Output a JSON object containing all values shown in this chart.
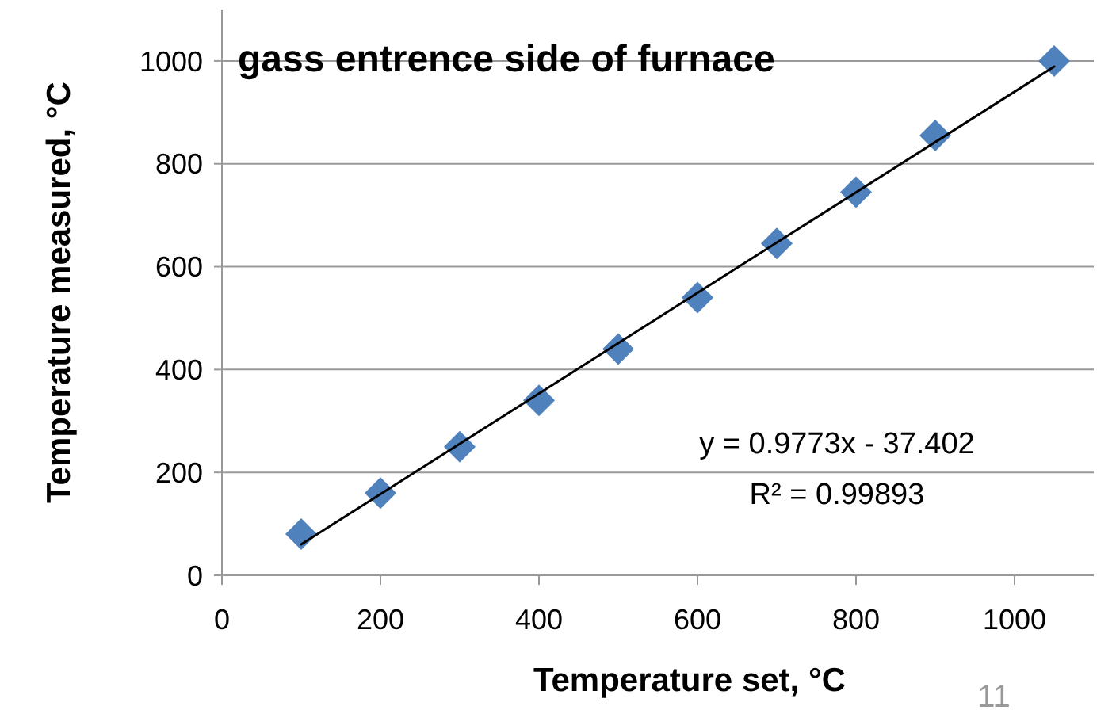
{
  "chart_data": {
    "type": "scatter",
    "title": "gass entrence side of furnace",
    "xlabel": "Temperature set, °C",
    "ylabel": "Temperature measured, °C",
    "x": [
      100,
      200,
      300,
      400,
      500,
      600,
      700,
      800,
      900,
      1050
    ],
    "series": [
      {
        "color": "#4f81bd",
        "marker": "diamond",
        "values": [
          80,
          160,
          250,
          340,
          440,
          540,
          645,
          745,
          855,
          1000
        ]
      },
      {
        "type": "line",
        "color": "#000000",
        "line_style": "solid",
        "marker": "none",
        "x": [
          100,
          1050
        ],
        "values": [
          60,
          989
        ]
      }
    ],
    "xlim": [
      0,
      1100
    ],
    "ylim": [
      0,
      1100
    ],
    "xticks": [
      0,
      200,
      400,
      600,
      800,
      1000
    ],
    "yticks": [
      0,
      200,
      400,
      600,
      800,
      1000
    ],
    "grid": "y",
    "annotations": [
      "y = 0.9773x - 37.402",
      "R² = 0.99893",
      "11"
    ]
  }
}
